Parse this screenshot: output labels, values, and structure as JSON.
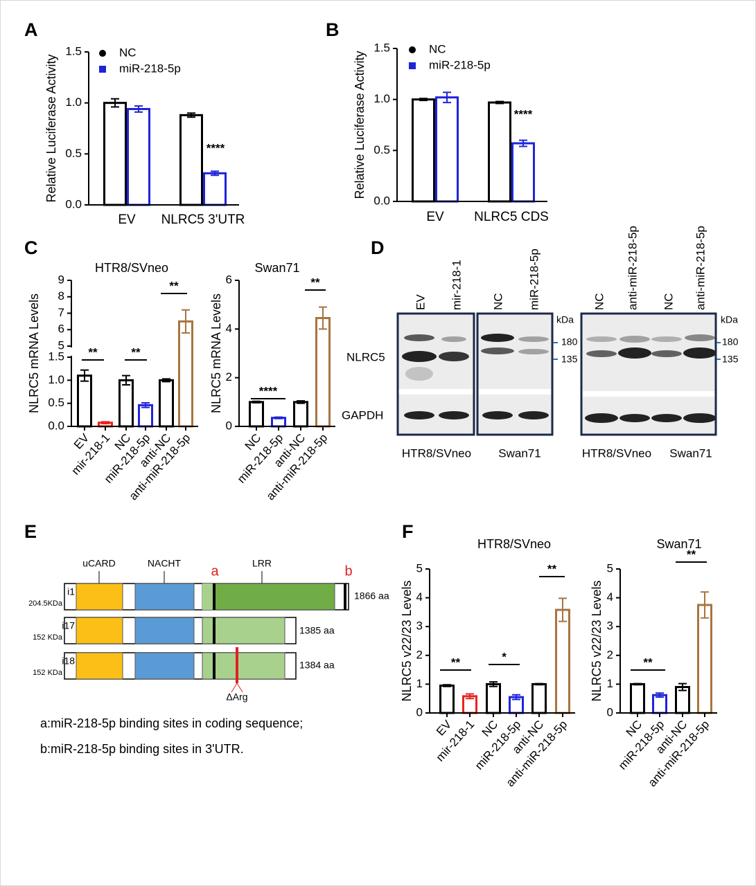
{
  "chart_data": [
    {
      "type": "bar",
      "panel": "A",
      "ylabel": "Relative Luciferase Activity",
      "categories": [
        "EV",
        "NLRC5 3'UTR"
      ],
      "series": [
        {
          "name": "NC",
          "color": "#000000",
          "values": [
            1.0,
            0.88
          ],
          "errors": [
            0.04,
            0.02
          ]
        },
        {
          "name": "miR-218-5p",
          "color": "#1f24d8",
          "values": [
            0.94,
            0.31
          ],
          "errors": [
            0.03,
            0.02
          ]
        }
      ],
      "ylim": [
        0,
        1.5
      ],
      "yticks": [
        {
          "value": 0,
          "label": "0.0"
        },
        0.5,
        {
          "value": 1,
          "label": "1.0"
        },
        1.5
      ],
      "annotations": [
        "****"
      ]
    },
    {
      "type": "bar",
      "panel": "B",
      "ylabel": "Relative Luciferase Activity",
      "categories": [
        "EV",
        "NLRC5 CDS"
      ],
      "series": [
        {
          "name": "NC",
          "color": "#000000",
          "values": [
            1.0,
            0.97
          ],
          "errors": [
            0.01,
            0.01
          ]
        },
        {
          "name": "miR-218-5p",
          "color": "#1f24d8",
          "values": [
            1.02,
            0.57
          ],
          "errors": [
            0.05,
            0.03
          ]
        }
      ],
      "ylim": [
        0,
        1.5
      ],
      "yticks": [
        {
          "value": 0,
          "label": "0.0"
        },
        0.5,
        {
          "value": 1,
          "label": "1.0"
        },
        1.5
      ],
      "annotations": [
        "****"
      ]
    },
    {
      "type": "bar",
      "panel": "C",
      "title": "HTR8/SVneo",
      "ylabel": "NLRC5 mRNA Levels",
      "categories": [
        "EV",
        "mir-218-1",
        "NC",
        "miR-218-5p",
        "anti-NC",
        "anti-miR-218-5p"
      ],
      "values": [
        1.1,
        0.08,
        1.0,
        0.46,
        1.0,
        6.5
      ],
      "errors": [
        0.12,
        0.02,
        0.1,
        0.05,
        0.03,
        0.7
      ],
      "colors": [
        "#000000",
        "#e8231f",
        "#000000",
        "#1f24d8",
        "#000000",
        "#a8743e"
      ],
      "ylim": [
        0,
        9
      ],
      "axis_break": [
        1.5,
        5
      ],
      "yticks": [
        {
          "value": 0,
          "label": "0.0"
        },
        0.5,
        {
          "value": 1,
          "label": "1.0"
        },
        1.5,
        5,
        6,
        7,
        8,
        9
      ],
      "annotations": [
        "**",
        "**",
        "**"
      ]
    },
    {
      "type": "bar",
      "title": "Swan71",
      "ylabel": "NLRC5 mRNA Levels",
      "categories": [
        "NC",
        "miR-218-5p",
        "anti-NC",
        "anti-miR-218-5p"
      ],
      "values": [
        1.0,
        0.35,
        1.0,
        4.45
      ],
      "errors": [
        0.03,
        0.03,
        0.05,
        0.45
      ],
      "colors": [
        "#000000",
        "#1f24d8",
        "#000000",
        "#a8743e"
      ],
      "ylim": [
        0,
        6
      ],
      "yticks": [
        0,
        2,
        4,
        6
      ],
      "annotations": [
        "****",
        "**"
      ]
    },
    {
      "type": "bar",
      "panel": "F",
      "title": "HTR8/SVneo",
      "ylabel": "NLRC5 v22/23 Levels",
      "categories": [
        "EV",
        "mir-218-1",
        "NC",
        "miR-218-5p",
        "anti-NC",
        "anti-miR-218-5p"
      ],
      "values": [
        0.95,
        0.58,
        1.0,
        0.55,
        1.0,
        3.58
      ],
      "errors": [
        0.03,
        0.08,
        0.08,
        0.08,
        0.02,
        0.4
      ],
      "colors": [
        "#000000",
        "#e8231f",
        "#000000",
        "#1f24d8",
        "#000000",
        "#a8743e"
      ],
      "ylim": [
        0,
        5
      ],
      "yticks": [
        0,
        1,
        2,
        3,
        4,
        5
      ],
      "annotations": [
        "**",
        "*",
        "**"
      ]
    },
    {
      "type": "bar",
      "title": "Swan71",
      "ylabel": "NLRC5 v22/23 Levels",
      "categories": [
        "NC",
        "miR-218-5p",
        "anti-NC",
        "anti-miR-218-5p"
      ],
      "values": [
        1.0,
        0.62,
        0.9,
        3.75
      ],
      "errors": [
        0.02,
        0.07,
        0.12,
        0.45
      ],
      "colors": [
        "#000000",
        "#1f24d8",
        "#000000",
        "#a8743e"
      ],
      "ylim": [
        0,
        5
      ],
      "yticks": [
        0,
        1,
        2,
        3,
        4,
        5
      ],
      "annotations": [
        "**",
        "**"
      ]
    }
  ],
  "blot": {
    "panel": "D",
    "lanes": [
      "EV",
      "mir-218-1",
      "NC",
      "miR-218-5p",
      "NC",
      "anti-miR-218-5p",
      "NC",
      "anti-miR-218-5p"
    ],
    "unit": "kDa",
    "markers": [
      "180",
      "135"
    ],
    "rows": [
      "NLRC5",
      "GAPDH"
    ],
    "cells": [
      "HTR8/SVneo",
      "Swan71",
      "HTR8/SVneo",
      "Swan71"
    ]
  },
  "diagram": {
    "panel": "E",
    "domains": [
      "uCARD",
      "NACHT",
      "LRR"
    ],
    "sites": [
      "a",
      "b"
    ],
    "isoforms": [
      {
        "name": "i1",
        "mass": "204.5KDa",
        "length": "1866 aa"
      },
      {
        "name": "i17",
        "mass": "152 KDa",
        "length": "1385 aa"
      },
      {
        "name": "i18",
        "mass": "152 KDa",
        "length": "1384 aa"
      }
    ],
    "mutation": "ΔArg",
    "notes": [
      "a:miR-218-5p binding sites in coding sequence;",
      "b:miR-218-5p binding sites in 3'UTR."
    ]
  }
}
